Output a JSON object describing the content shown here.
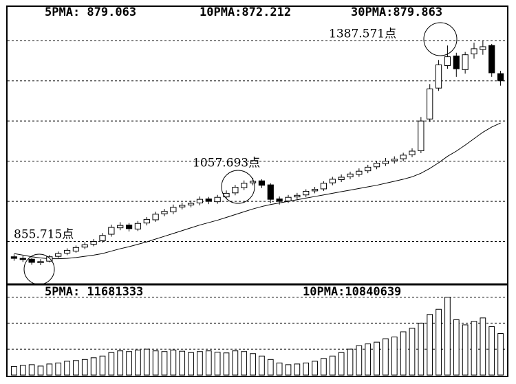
{
  "chart_data": [
    {
      "type": "candlestick",
      "headers": [
        "5PMA: 879.063",
        "10PMA:872.212",
        "30PMA:879.863"
      ],
      "annotations": [
        "855.715点",
        "1057.693点",
        "1387.571点"
      ],
      "open": [
        862,
        858,
        856,
        847,
        851,
        863,
        871,
        876,
        886,
        893,
        902,
        918,
        934,
        941,
        931,
        946,
        954,
        969,
        974,
        986,
        991,
        996,
        1006,
        999,
        1011,
        1021,
        1034,
        1046,
        1051,
        1041,
        1006,
        1001,
        1011,
        1016,
        1026,
        1031,
        1046,
        1054,
        1061,
        1067,
        1076,
        1086,
        1094,
        1101,
        1106,
        1116,
        1126,
        1205,
        1282,
        1338,
        1362,
        1328,
        1367,
        1378,
        1388,
        1318
      ],
      "high": [
        868,
        864,
        860,
        856,
        866,
        875,
        883,
        890,
        898,
        906,
        921,
        942,
        948,
        946,
        951,
        961,
        974,
        981,
        992,
        997,
        1002,
        1012,
        1011,
        1016,
        1027,
        1041,
        1052,
        1058,
        1055,
        1045,
        1012,
        1016,
        1021,
        1030,
        1036,
        1050,
        1061,
        1067,
        1074,
        1082,
        1091,
        1101,
        1108,
        1112,
        1121,
        1132,
        1210,
        1292,
        1352,
        1388,
        1370,
        1372,
        1395,
        1400,
        1392,
        1325
      ],
      "low": [
        852,
        849,
        842,
        841,
        848,
        859,
        866,
        872,
        881,
        888,
        897,
        912,
        928,
        925,
        926,
        940,
        949,
        963,
        968,
        980,
        985,
        990,
        993,
        994,
        1005,
        1015,
        1028,
        1040,
        1033,
        995,
        992,
        996,
        1005,
        1010,
        1020,
        1026,
        1040,
        1048,
        1055,
        1061,
        1070,
        1080,
        1088,
        1094,
        1100,
        1110,
        1120,
        1198,
        1275,
        1330,
        1310,
        1318,
        1355,
        1365,
        1310,
        1288
      ],
      "close": [
        858,
        855,
        848,
        850,
        862,
        870,
        878,
        885,
        892,
        900,
        915,
        935,
        940,
        932,
        945,
        955,
        968,
        975,
        985,
        990,
        995,
        1005,
        1000,
        1010,
        1020,
        1035,
        1045,
        1050,
        1040,
        1005,
        1000,
        1010,
        1015,
        1025,
        1030,
        1045,
        1055,
        1060,
        1068,
        1075,
        1085,
        1095,
        1100,
        1105,
        1115,
        1125,
        1200,
        1280,
        1340,
        1360,
        1330,
        1365,
        1380,
        1385,
        1320,
        1300
      ],
      "ma30": [
        870,
        866,
        862,
        859,
        857,
        857,
        858,
        860,
        863,
        866,
        870,
        876,
        882,
        887,
        893,
        899,
        906,
        913,
        920,
        927,
        934,
        941,
        947,
        953,
        960,
        967,
        974,
        981,
        987,
        992,
        996,
        1000,
        1004,
        1008,
        1012,
        1016,
        1020,
        1024,
        1028,
        1032,
        1036,
        1040,
        1045,
        1050,
        1055,
        1061,
        1070,
        1082,
        1096,
        1112,
        1125,
        1140,
        1156,
        1172,
        1185,
        1195
      ],
      "ylim": [
        800,
        1450
      ],
      "grid_lines": [
        900,
        1000,
        1100,
        1200,
        1300,
        1400
      ],
      "color": "#000000"
    },
    {
      "type": "bar",
      "headers": [
        "5PMA: 11681333",
        "10PMA:10840639"
      ],
      "values": [
        2500000,
        2800000,
        3000000,
        2600000,
        3200000,
        3500000,
        4000000,
        4200000,
        4500000,
        5000000,
        5500000,
        6500000,
        7000000,
        6800000,
        7200000,
        7500000,
        7000000,
        6800000,
        7200000,
        6900000,
        6500000,
        6800000,
        7000000,
        6600000,
        6400000,
        7000000,
        6800000,
        6200000,
        5500000,
        4500000,
        3500000,
        3000000,
        3200000,
        3500000,
        4000000,
        4800000,
        5500000,
        6500000,
        7500000,
        8500000,
        9000000,
        9500000,
        10500000,
        11000000,
        12500000,
        13500000,
        15000000,
        17500000,
        19000000,
        22500000,
        16000000,
        14500000,
        15500000,
        16500000,
        14000000,
        12000000
      ],
      "ylim": [
        0,
        25000000
      ],
      "grid_lines": [
        7500000,
        15000000,
        22500000
      ],
      "color": "#000000"
    }
  ]
}
